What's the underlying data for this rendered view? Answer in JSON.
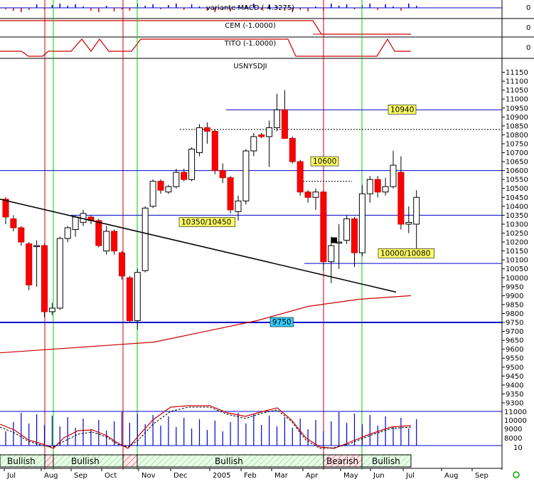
{
  "panels": {
    "macd_label": "variante MACD (-4.3275)",
    "macd_value": "0",
    "cem_label": "CEM (-1.0000)",
    "cem_value": "0",
    "tito_label": "TITO (-1.0000)",
    "tito_value": "0",
    "symbol": "USNYSDJI"
  },
  "colors": {
    "bull_candle": "#ffffff",
    "bear_candle": "#ff0000",
    "blue_line": "#0000cc",
    "red_line": "#cc0000",
    "green_line": "#00cc00",
    "label_yellow": "#ffff66",
    "label_cyan": "#33ccff",
    "regime_green": "#ccffcc",
    "regime_red": "#ffcccc"
  },
  "chart_data": [
    {
      "type": "candlestick",
      "title": "USNYSDJI",
      "period": "weekly",
      "ylim": [
        9300,
        11200
      ],
      "y_ticks": [
        9300,
        9350,
        9400,
        9450,
        9500,
        9550,
        9600,
        9650,
        9700,
        9750,
        9800,
        9850,
        9900,
        9950,
        10000,
        10050,
        10100,
        10150,
        10200,
        10250,
        10300,
        10350,
        10400,
        10450,
        10500,
        10550,
        10600,
        10650,
        10700,
        10750,
        10800,
        10850,
        10900,
        10950,
        11000,
        11050,
        11100,
        11150
      ],
      "x_tick_labels": [
        "Jul",
        "Aug",
        "Sep",
        "Oct",
        "Nov",
        "Dec",
        "2005",
        "Feb",
        "Mar",
        "Apr",
        "May",
        "Jun",
        "Jul",
        "Aug",
        "Sep"
      ],
      "candles": [
        {
          "o": 10440,
          "h": 10450,
          "l": 10300,
          "c": 10340
        },
        {
          "o": 10330,
          "h": 10350,
          "l": 10260,
          "c": 10280
        },
        {
          "o": 10280,
          "h": 10290,
          "l": 10180,
          "c": 10200
        },
        {
          "o": 10190,
          "h": 10200,
          "l": 9930,
          "c": 9960
        },
        {
          "o": 10180,
          "h": 10210,
          "l": 9950,
          "c": 10180
        },
        {
          "o": 10180,
          "h": 10190,
          "l": 9780,
          "c": 9810
        },
        {
          "o": 9810,
          "h": 9860,
          "l": 9790,
          "c": 9830
        },
        {
          "o": 9830,
          "h": 10230,
          "l": 9820,
          "c": 10220
        },
        {
          "o": 10220,
          "h": 10290,
          "l": 10200,
          "c": 10280
        },
        {
          "o": 10270,
          "h": 10350,
          "l": 10230,
          "c": 10340
        },
        {
          "o": 10310,
          "h": 10380,
          "l": 10290,
          "c": 10360
        },
        {
          "o": 10340,
          "h": 10350,
          "l": 10300,
          "c": 10320
        },
        {
          "o": 10320,
          "h": 10330,
          "l": 10170,
          "c": 10180
        },
        {
          "o": 10150,
          "h": 10290,
          "l": 10130,
          "c": 10260
        },
        {
          "o": 10260,
          "h": 10270,
          "l": 10130,
          "c": 10150
        },
        {
          "o": 10140,
          "h": 10150,
          "l": 9990,
          "c": 10010
        },
        {
          "o": 10000,
          "h": 10010,
          "l": 9750,
          "c": 9760
        },
        {
          "o": 9760,
          "h": 10050,
          "l": 9710,
          "c": 10030
        },
        {
          "o": 10040,
          "h": 10400,
          "l": 10030,
          "c": 10390
        },
        {
          "o": 10400,
          "h": 10550,
          "l": 10390,
          "c": 10540
        },
        {
          "o": 10540,
          "h": 10550,
          "l": 10470,
          "c": 10490
        },
        {
          "o": 10480,
          "h": 10520,
          "l": 10470,
          "c": 10510
        },
        {
          "o": 10510,
          "h": 10610,
          "l": 10500,
          "c": 10590
        },
        {
          "o": 10590,
          "h": 10610,
          "l": 10540,
          "c": 10550
        },
        {
          "o": 10550,
          "h": 10730,
          "l": 10540,
          "c": 10720
        },
        {
          "o": 10700,
          "h": 10860,
          "l": 10680,
          "c": 10840
        },
        {
          "o": 10840,
          "h": 10870,
          "l": 10750,
          "c": 10820
        },
        {
          "o": 10820,
          "h": 10830,
          "l": 10580,
          "c": 10600
        },
        {
          "o": 10600,
          "h": 10640,
          "l": 10530,
          "c": 10560
        },
        {
          "o": 10560,
          "h": 10570,
          "l": 10360,
          "c": 10380
        },
        {
          "o": 10370,
          "h": 10460,
          "l": 10320,
          "c": 10430
        },
        {
          "o": 10430,
          "h": 10720,
          "l": 10410,
          "c": 10710
        },
        {
          "o": 10710,
          "h": 10810,
          "l": 10680,
          "c": 10790
        },
        {
          "o": 10800,
          "h": 10810,
          "l": 10780,
          "c": 10790
        },
        {
          "o": 10790,
          "h": 10880,
          "l": 10620,
          "c": 10840
        },
        {
          "o": 10840,
          "h": 11030,
          "l": 10820,
          "c": 10940
        },
        {
          "o": 10940,
          "h": 11050,
          "l": 10780,
          "c": 10780
        },
        {
          "o": 10780,
          "h": 10790,
          "l": 10640,
          "c": 10650
        },
        {
          "o": 10650,
          "h": 10660,
          "l": 10460,
          "c": 10480
        },
        {
          "o": 10480,
          "h": 10490,
          "l": 10420,
          "c": 10450
        },
        {
          "o": 10450,
          "h": 10500,
          "l": 10380,
          "c": 10480
        },
        {
          "o": 10480,
          "h": 10490,
          "l": 10040,
          "c": 10090
        },
        {
          "o": 10090,
          "h": 10230,
          "l": 9970,
          "c": 10180
        },
        {
          "o": 10200,
          "h": 10300,
          "l": 10050,
          "c": 10200
        },
        {
          "o": 10210,
          "h": 10350,
          "l": 10190,
          "c": 10330
        },
        {
          "o": 10330,
          "h": 10340,
          "l": 10060,
          "c": 10140
        },
        {
          "o": 10140,
          "h": 10520,
          "l": 10120,
          "c": 10470
        },
        {
          "o": 10470,
          "h": 10570,
          "l": 10420,
          "c": 10550
        },
        {
          "o": 10550,
          "h": 10570,
          "l": 10450,
          "c": 10480
        },
        {
          "o": 10480,
          "h": 10560,
          "l": 10460,
          "c": 10510
        },
        {
          "o": 10510,
          "h": 10710,
          "l": 10500,
          "c": 10630
        },
        {
          "o": 10590,
          "h": 10680,
          "l": 10270,
          "c": 10300
        },
        {
          "o": 10300,
          "h": 10400,
          "l": 10250,
          "c": 10310
        },
        {
          "o": 10300,
          "h": 10490,
          "l": 10140,
          "c": 10450
        }
      ],
      "horizontal_levels": [
        {
          "value": 10940,
          "label": "10940",
          "style": "label-yellow"
        },
        {
          "value": 10600,
          "label": "10600",
          "style": "label-yellow"
        },
        {
          "value": 10350,
          "label": "10350/10450",
          "style": "label-yellow"
        },
        {
          "value": 10080,
          "label": "10000/10080",
          "style": "label-yellow"
        },
        {
          "value": 9750,
          "label": "9750",
          "style": "label-cyan"
        }
      ],
      "dotted_levels": [
        10830,
        10540
      ],
      "trendline": {
        "from": {
          "bar": 0,
          "value": 10440
        },
        "to": {
          "bar": 50,
          "value": 9920
        }
      },
      "moving_average": [
        9580,
        9600,
        9620,
        9640,
        9700,
        9760,
        9840,
        9880,
        9900
      ]
    },
    {
      "type": "oscillator",
      "y_ticks": [
        "11000",
        "10000",
        "9000",
        "8000",
        "10"
      ],
      "regimes": [
        {
          "label": "Bullish",
          "state": "bull"
        },
        {
          "label": "",
          "state": "bear"
        },
        {
          "label": "Bullish",
          "state": "bull"
        },
        {
          "label": "",
          "state": "bear"
        },
        {
          "label": "Bullish",
          "state": "bull"
        },
        {
          "label": "Bearish",
          "state": "bear"
        },
        {
          "label": "Bullish",
          "state": "bull"
        }
      ]
    }
  ]
}
